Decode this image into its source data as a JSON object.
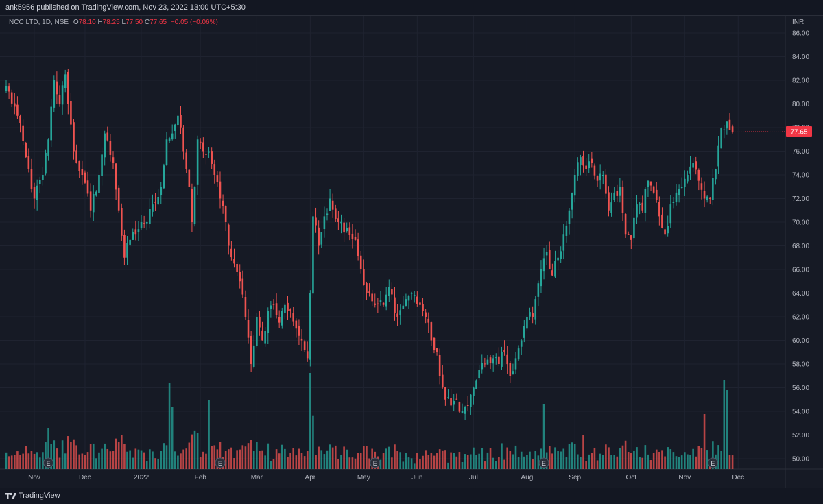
{
  "header": {
    "published": "ank5956 published on TradingView.com, Nov 23, 2022 13:00 UTC+5:30"
  },
  "legend": {
    "symbol": "NCC LTD, 1D, NSE",
    "o_label": "O",
    "o_value": "78.10",
    "h_label": "H",
    "h_value": "78.25",
    "l_label": "L",
    "l_value": "77.50",
    "c_label": "C",
    "c_value": "77.65",
    "change": "−0.05 (−0.06%)"
  },
  "price_axis": {
    "currency": "INR",
    "last_price": "77.65"
  },
  "footer": {
    "brand": "TradingView"
  },
  "colors": {
    "up": "#26a69a",
    "down": "#ef5350",
    "background": "#161a25",
    "grid": "#1f2330",
    "last_price_bg": "#f23645"
  },
  "chart_data": {
    "type": "candlestick",
    "ylim": [
      49,
      87
    ],
    "y_ticks": [
      "86.00",
      "84.00",
      "82.00",
      "80.00",
      "78.00",
      "76.00",
      "74.00",
      "72.00",
      "70.00",
      "68.00",
      "66.00",
      "64.00",
      "62.00",
      "60.00",
      "58.00",
      "56.00",
      "54.00",
      "52.00",
      "50.00"
    ],
    "x_ticks": [
      "Nov",
      "Dec",
      "2022",
      "Feb",
      "Mar",
      "Apr",
      "May",
      "Jun",
      "Jul",
      "Aug",
      "Sep",
      "Oct",
      "Nov",
      "Dec"
    ],
    "x_tick_index": [
      10,
      28,
      48,
      69,
      89,
      108,
      127,
      146,
      166,
      185,
      202,
      222,
      241,
      260
    ],
    "earnings_index": [
      15,
      76,
      131,
      191,
      251
    ],
    "anchors": [
      [
        0,
        81.5
      ],
      [
        4,
        79
      ],
      [
        7,
        75.5
      ],
      [
        10,
        72
      ],
      [
        13,
        74
      ],
      [
        15,
        77
      ],
      [
        17,
        82
      ],
      [
        19,
        80
      ],
      [
        21,
        82.5
      ],
      [
        24,
        76
      ],
      [
        27,
        74
      ],
      [
        30,
        71
      ],
      [
        33,
        74
      ],
      [
        35,
        77.5
      ],
      [
        38,
        75
      ],
      [
        40,
        71
      ],
      [
        42,
        67
      ],
      [
        44,
        68.5
      ],
      [
        46,
        69
      ],
      [
        48,
        70
      ],
      [
        50,
        70
      ],
      [
        52,
        71.5
      ],
      [
        55,
        73
      ],
      [
        57,
        77
      ],
      [
        59,
        77.5
      ],
      [
        61,
        79
      ],
      [
        63,
        76
      ],
      [
        65,
        73
      ],
      [
        66,
        70
      ],
      [
        67,
        73
      ],
      [
        68,
        77
      ],
      [
        70,
        76
      ],
      [
        72,
        76
      ],
      [
        74,
        74
      ],
      [
        76,
        72
      ],
      [
        78,
        70
      ],
      [
        79,
        68
      ],
      [
        81,
        66.5
      ],
      [
        83,
        65
      ],
      [
        85,
        62
      ],
      [
        87,
        58
      ],
      [
        89,
        62
      ],
      [
        91,
        60
      ],
      [
        93,
        62.5
      ],
      [
        95,
        63
      ],
      [
        97,
        61.5
      ],
      [
        99,
        63
      ],
      [
        101,
        62.5
      ],
      [
        103,
        61
      ],
      [
        105,
        60
      ],
      [
        107,
        58.5
      ],
      [
        108,
        64
      ],
      [
        109,
        70.5
      ],
      [
        111,
        68
      ],
      [
        113,
        70.5
      ],
      [
        115,
        72
      ],
      [
        118,
        70
      ],
      [
        121,
        69.5
      ],
      [
        124,
        68.5
      ],
      [
        126,
        66
      ],
      [
        128,
        64
      ],
      [
        131,
        63
      ],
      [
        134,
        63
      ],
      [
        136,
        64.5
      ],
      [
        139,
        62
      ],
      [
        142,
        63.5
      ],
      [
        144,
        64
      ],
      [
        147,
        63
      ],
      [
        149,
        62
      ],
      [
        151,
        60
      ],
      [
        153,
        59
      ],
      [
        154,
        57
      ],
      [
        156,
        55
      ],
      [
        158,
        54.5
      ],
      [
        160,
        55
      ],
      [
        162,
        54
      ],
      [
        164,
        54.5
      ],
      [
        166,
        56
      ],
      [
        168,
        57.5
      ],
      [
        170,
        58
      ],
      [
        173,
        58.5
      ],
      [
        175,
        58
      ],
      [
        177,
        59
      ],
      [
        179,
        57
      ],
      [
        181,
        58.5
      ],
      [
        183,
        60
      ],
      [
        185,
        62
      ],
      [
        187,
        62
      ],
      [
        188,
        63.5
      ],
      [
        190,
        66
      ],
      [
        192,
        67.5
      ],
      [
        194,
        65.5
      ],
      [
        196,
        67
      ],
      [
        198,
        69
      ],
      [
        200,
        71
      ],
      [
        202,
        74
      ],
      [
        204,
        75.5
      ],
      [
        206,
        74.5
      ],
      [
        208,
        75
      ],
      [
        210,
        73.5
      ],
      [
        212,
        74
      ],
      [
        214,
        71
      ],
      [
        216,
        72.5
      ],
      [
        218,
        73
      ],
      [
        220,
        69
      ],
      [
        222,
        68.5
      ],
      [
        224,
        71.5
      ],
      [
        226,
        71
      ],
      [
        228,
        73.5
      ],
      [
        230,
        72.5
      ],
      [
        232,
        70.5
      ],
      [
        234,
        69
      ],
      [
        236,
        71.5
      ],
      [
        238,
        72.5
      ],
      [
        240,
        73
      ],
      [
        242,
        74
      ],
      [
        244,
        75
      ],
      [
        246,
        73.5
      ],
      [
        248,
        72
      ],
      [
        250,
        72
      ],
      [
        252,
        74.5
      ],
      [
        254,
        78
      ],
      [
        256,
        78.5
      ],
      [
        257,
        77.8
      ],
      [
        258,
        77.65
      ]
    ],
    "last": {
      "open": 78.1,
      "high": 78.25,
      "low": 77.5,
      "close": 77.65
    }
  }
}
